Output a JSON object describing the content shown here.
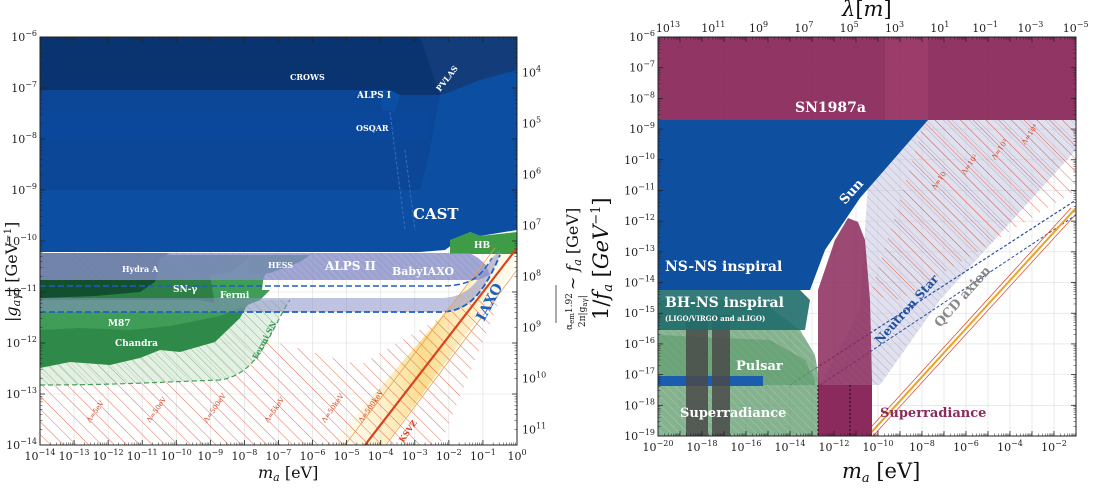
{
  "colors": {
    "helioscope_dark": "#0a2e63",
    "helioscope": "#0c4ea2",
    "helioscope_mid": "#1358b0",
    "lsw": "#0f3f8a",
    "astro_green": "#2c8a4a",
    "astro_dark": "#0d4a2c",
    "hb_green": "#3d9c45",
    "alps_ii": "#8a90c8",
    "iaxo": "#1f5fc4",
    "qcd_band": "#f7d98a",
    "ksvz": "#d9421f",
    "sn_purple": "#8b2a5c",
    "sun_blue": "#0f4fa0",
    "ns_teal": "#1f6d6b",
    "gray_band": "#444444",
    "qcd_gray": "#888888"
  },
  "chart_data": [
    {
      "type": "area",
      "xlabel": "m_a [eV]",
      "ylabel": "|g_aγ| [GeV^-1]",
      "right_ylabel": "α_em 1.92 / 2π|g_aγ| ~ f_a [GeV]",
      "x_log_range": [
        -14,
        0
      ],
      "y_log_range": [
        -14,
        -6
      ],
      "x_ticks": [
        "10^-14",
        "10^-13",
        "10^-12",
        "10^-11",
        "10^-10",
        "10^-9",
        "10^-8",
        "10^-7",
        "10^-6",
        "10^-5",
        "10^-4",
        "10^-3",
        "10^-2",
        "10^-1",
        "10^0"
      ],
      "y_ticks": [
        "10^-14",
        "10^-13",
        "10^-12",
        "10^-11",
        "10^-10",
        "10^-9",
        "10^-8",
        "10^-7",
        "10^-6"
      ],
      "right_ticks": [
        "10^4",
        "10^5",
        "10^6",
        "10^7",
        "10^8",
        "10^9",
        "10^10",
        "10^11"
      ],
      "region_labels": [
        {
          "text": "CROWS",
          "style": "white"
        },
        {
          "text": "ALPS I",
          "style": "white"
        },
        {
          "text": "OSQAR",
          "style": "white"
        },
        {
          "text": "PVLAS",
          "style": "white"
        },
        {
          "text": "CAST",
          "style": "white"
        },
        {
          "text": "HB",
          "style": "white"
        },
        {
          "text": "Hydra A",
          "style": "white"
        },
        {
          "text": "HESS",
          "style": "white"
        },
        {
          "text": "ALPS II",
          "style": "white"
        },
        {
          "text": "BabyIAXO",
          "style": "white"
        },
        {
          "text": "SN-γ",
          "style": "white"
        },
        {
          "text": "Fermi",
          "style": "white"
        },
        {
          "text": "M87",
          "style": "white"
        },
        {
          "text": "Chandra",
          "style": "white"
        },
        {
          "text": "Fermi SN",
          "style": "green"
        },
        {
          "text": "IAXO",
          "style": "blue"
        },
        {
          "text": "KSVZ",
          "style": "red"
        }
      ],
      "lambda_labels": [
        "Λ=5eV",
        "Λ=50eV",
        "Λ=500eV",
        "Λ=5keV",
        "Λ=50keV",
        "Λ=500keV"
      ]
    },
    {
      "type": "area",
      "xlabel": "m_a [eV]",
      "ylabel": "1/f_a [GeV^-1]",
      "top_xlabel": "λ[m]",
      "x_log_range": [
        -20,
        -1
      ],
      "y_log_range": [
        -19,
        -6
      ],
      "x_ticks": [
        "10^-20",
        "10^-18",
        "10^-16",
        "10^-14",
        "10^-12",
        "10^-10",
        "10^-8",
        "10^-6",
        "10^-4",
        "10^-2"
      ],
      "top_ticks": [
        "10^13",
        "10^11",
        "10^9",
        "10^7",
        "10^5",
        "10^3",
        "10^1",
        "10^-1",
        "10^-3",
        "10^-5"
      ],
      "y_ticks": [
        "10^-19",
        "10^-18",
        "10^-17",
        "10^-16",
        "10^-15",
        "10^-14",
        "10^-13",
        "10^-12",
        "10^-11",
        "10^-10",
        "10^-9",
        "10^-8",
        "10^-7",
        "10^-6"
      ],
      "region_labels": [
        {
          "text": "SN1987a",
          "style": "white"
        },
        {
          "text": "Sun",
          "style": "white"
        },
        {
          "text": "NS-NS inspiral",
          "style": "white"
        },
        {
          "text": "BH-NS inspiral",
          "style": "white"
        },
        {
          "text": "(LIGO/VIRGO and aLIGO)",
          "style": "white"
        },
        {
          "text": "Pulsar",
          "style": "white"
        },
        {
          "text": "Superradiance",
          "style": "white"
        },
        {
          "text": "Superradiance",
          "style": "purple"
        },
        {
          "text": "Neutron Star",
          "style": "blue"
        },
        {
          "text": "QCD axion",
          "style": "gray"
        }
      ],
      "lambda_labels": [
        "Λ=10",
        "Λ=10²",
        "Λ=10³",
        "Λ=10⁴"
      ]
    }
  ]
}
